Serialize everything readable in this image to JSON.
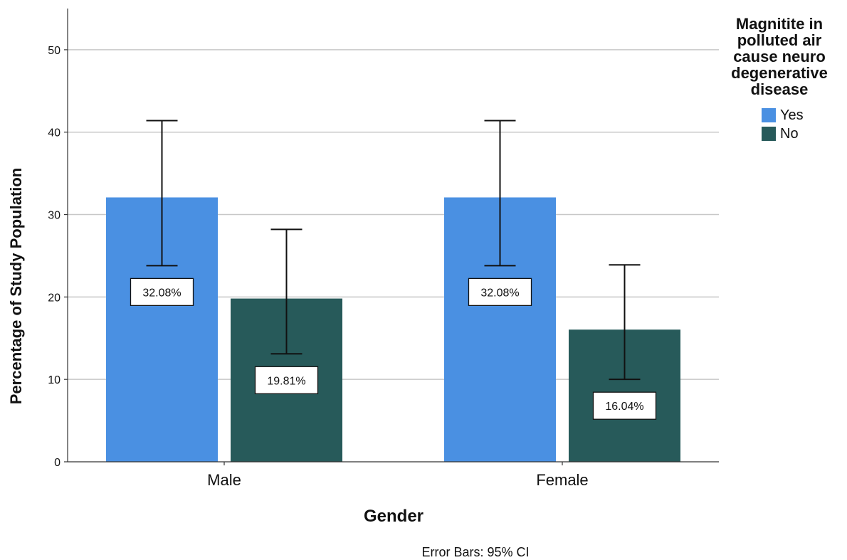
{
  "chart_data": {
    "type": "bar",
    "categories": [
      "Male",
      "Female"
    ],
    "series": [
      {
        "name": "Yes",
        "values": [
          32.08,
          32.08
        ],
        "ci_low": [
          23.8,
          23.8
        ],
        "ci_high": [
          41.4,
          41.4
        ],
        "labels": [
          "32.08%",
          "32.08%"
        ]
      },
      {
        "name": "No",
        "values": [
          19.81,
          16.04
        ],
        "ci_low": [
          13.1,
          10.0
        ],
        "ci_high": [
          28.2,
          23.9
        ],
        "labels": [
          "19.81%",
          "16.04%"
        ]
      }
    ],
    "xlabel": "Gender",
    "ylabel": "Percentage of Study Population",
    "ylim": [
      0,
      55
    ],
    "yticks": [
      0,
      10,
      20,
      30,
      40,
      50
    ],
    "grid": true,
    "footnote": "Error Bars: 95% CI",
    "legend": {
      "title": "Magnitite in polluted air cause neuro degenerative disease",
      "placement": "top-right"
    },
    "colors": {
      "Yes": "#4a90e2",
      "No": "#275a5a"
    }
  }
}
